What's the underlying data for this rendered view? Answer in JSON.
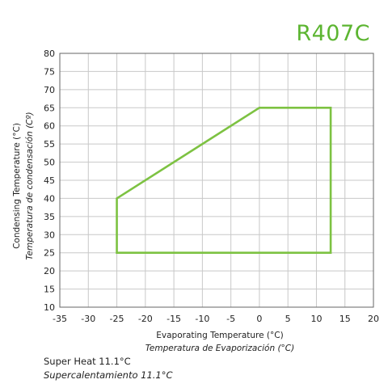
{
  "chart_data": {
    "type": "line",
    "title": "R407C",
    "xlabel": "Evaporating Temperature (°C)",
    "xlabel_es": "Temperatura de Evaporización (°C)",
    "ylabel": "Condensing Temperature (°C)",
    "ylabel_es": "Temperatura de condensación (Cº)",
    "xlim": [
      -35,
      20
    ],
    "ylim": [
      10,
      80
    ],
    "x_ticks": [
      -35,
      -30,
      -25,
      -20,
      -15,
      -10,
      -5,
      0,
      5,
      10,
      15,
      20
    ],
    "y_ticks": [
      10,
      15,
      20,
      25,
      30,
      35,
      40,
      45,
      50,
      55,
      60,
      65,
      70,
      75,
      80
    ],
    "grid": true,
    "series": [
      {
        "color": "#7dc242",
        "closed": true,
        "points": [
          [
            -25,
            40
          ],
          [
            0,
            65
          ],
          [
            12.5,
            65
          ],
          [
            12.5,
            25
          ],
          [
            -25,
            25
          ]
        ]
      }
    ]
  },
  "footnote": {
    "superheat_en": "Super Heat 11.1°C",
    "superheat_es": "Supercalentamiento 11.1°C"
  }
}
